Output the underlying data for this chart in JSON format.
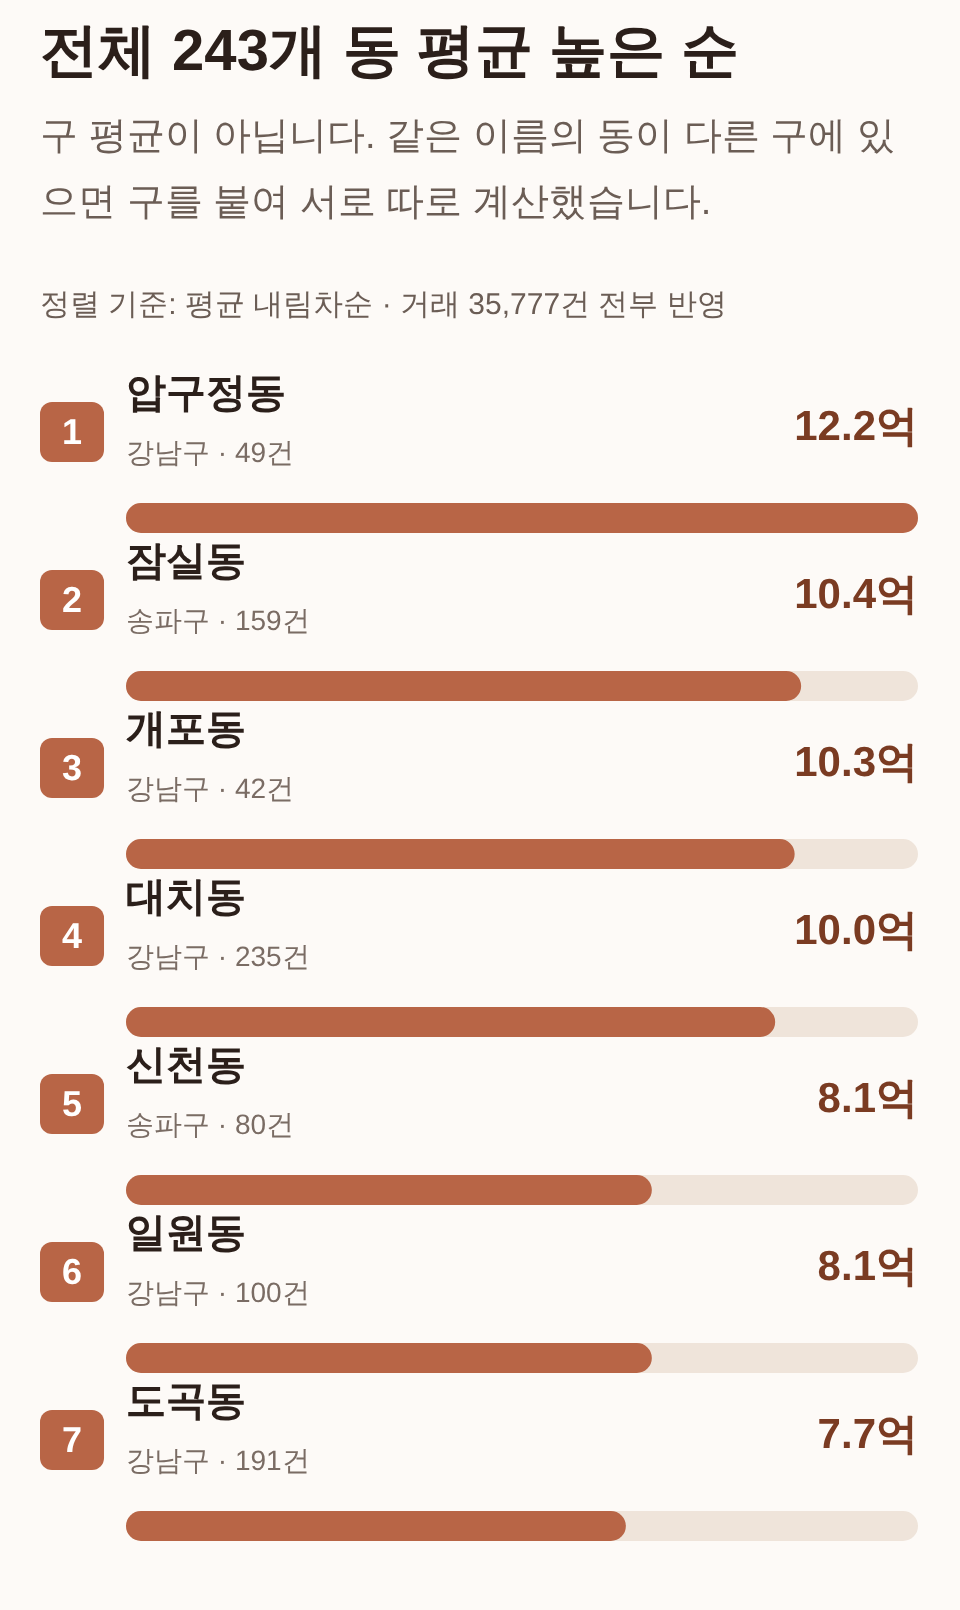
{
  "chart_data": {
    "type": "bar",
    "orientation": "horizontal",
    "title": "전체 243개 동 평균 높은 순",
    "subtitle": "구 평균이 아닙니다. 같은 이름의 동이 다른 구에 있으면 구를 붙여 서로 따로 계산했습니다.",
    "categories": [
      "압구정동",
      "잠실동",
      "개포동",
      "대치동",
      "신천동",
      "일원동",
      "도곡동"
    ],
    "values": [
      12.2,
      10.4,
      10.3,
      10.0,
      8.1,
      8.1,
      7.7
    ],
    "value_labels": [
      "12.2억",
      "10.4억",
      "10.3억",
      "10.0억",
      "8.1억",
      "8.1억",
      "7.7억"
    ],
    "color": "#b86546",
    "annotations": [
      "정렬 기준: 평균 내림차순 · 거래 35,777건 전부 반영",
      "1",
      "강남구 · 49건",
      "2",
      "송파구 · 159건",
      "3",
      "강남구 · 42건",
      "4",
      "강남구 · 235건",
      "5",
      "송파구 · 80건",
      "6",
      "강남구 · 100건",
      "7",
      "강남구 · 191건"
    ]
  }
}
